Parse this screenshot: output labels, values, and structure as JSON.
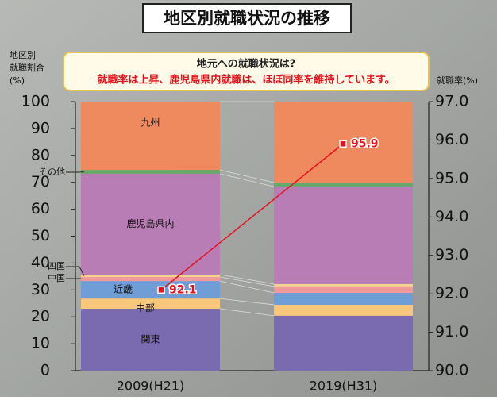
{
  "chart_data": {
    "type": "bar",
    "stacked": true,
    "title": "地区別就職状況の推移",
    "callout": {
      "heading": "地元への就職状況は?",
      "text": "就職率は上昇、鹿児島県内就職は、ほぼ同率を維持しています。"
    },
    "y_label": [
      "地区別",
      "就職割合",
      "(%)"
    ],
    "y2_label": "就職率(%)",
    "categories": [
      "2009(H21)",
      "2019(H31)"
    ],
    "ylim": [
      0,
      100
    ],
    "yticks": [
      0,
      10,
      20,
      30,
      40,
      50,
      60,
      70,
      80,
      90,
      100
    ],
    "y2lim": [
      90,
      97
    ],
    "y2ticks": [
      {
        "value": 90,
        "label": "90.0"
      },
      {
        "value": 91,
        "label": "91.0"
      },
      {
        "value": 92,
        "label": "92.0"
      },
      {
        "value": 93,
        "label": "93.0"
      },
      {
        "value": 94,
        "label": "94.0"
      },
      {
        "value": 95,
        "label": "95.0"
      },
      {
        "value": 96,
        "label": "96.0"
      },
      {
        "value": 97,
        "label": "97.0"
      }
    ],
    "series": [
      {
        "name": "関東",
        "color": "#7a6bb0",
        "values": [
          23.0,
          20.4
        ]
      },
      {
        "name": "中部",
        "color": "#f7c77b",
        "values": [
          3.8,
          4.1
        ]
      },
      {
        "name": "近畿",
        "color": "#6f9ed6",
        "values": [
          6.5,
          4.4
        ]
      },
      {
        "name": "中国",
        "color": "#f29a9a",
        "values": [
          1.5,
          2.4
        ]
      },
      {
        "name": "四国",
        "color": "#f1d38c",
        "values": [
          0.9,
          0.9
        ]
      },
      {
        "name": "鹿児島県内",
        "color": "#b97db6",
        "values": [
          37.5,
          36.2
        ]
      },
      {
        "name": "その他",
        "color": "#67a86b",
        "values": [
          1.4,
          1.5
        ]
      },
      {
        "name": "九州",
        "color": "#ef8a5e",
        "values": [
          25.4,
          30.1
        ]
      }
    ],
    "line": {
      "type": "line",
      "axis": "y2",
      "color": "#e5121c",
      "values": [
        92.1,
        95.9
      ]
    }
  }
}
